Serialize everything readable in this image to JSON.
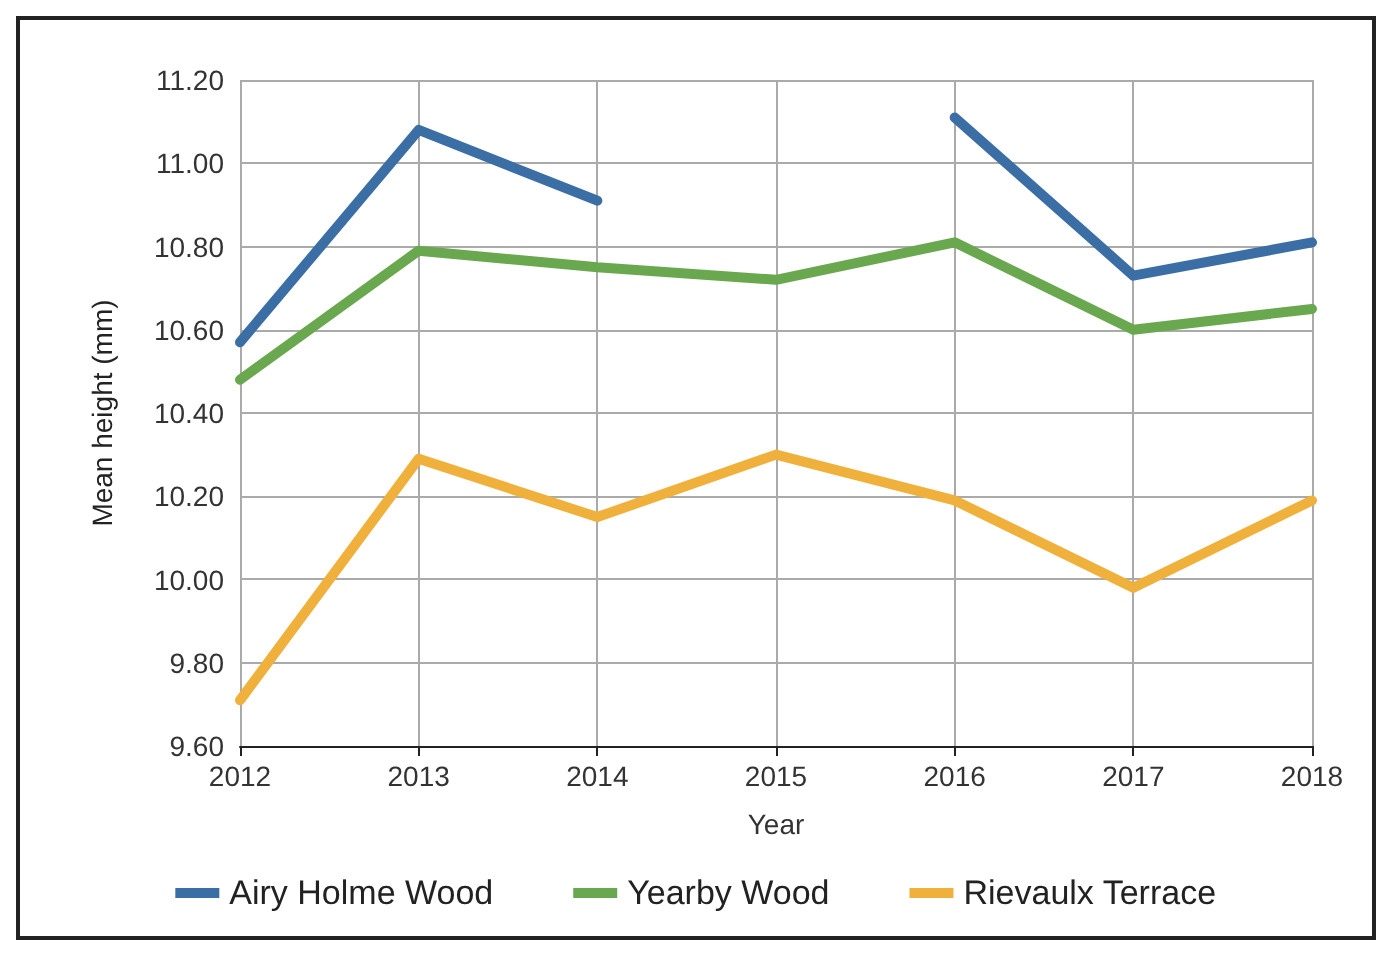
{
  "chart_data": {
    "type": "line",
    "xlabel": "Year",
    "ylabel": "Mean height (mm)",
    "categories": [
      "2012",
      "2013",
      "2014",
      "2015",
      "2016",
      "2017",
      "2018"
    ],
    "series": [
      {
        "name": "Airy Holme Wood",
        "color": "#3b6ea5",
        "values": [
          10.57,
          11.08,
          10.91,
          null,
          11.11,
          10.73,
          10.81
        ]
      },
      {
        "name": "Yearby Wood",
        "color": "#6aa84f",
        "values": [
          10.48,
          10.79,
          10.75,
          10.72,
          10.81,
          10.6,
          10.65
        ]
      },
      {
        "name": "Rievaulx Terrace",
        "color": "#f0b03c",
        "values": [
          9.71,
          10.29,
          10.15,
          10.3,
          10.19,
          9.98,
          10.19
        ]
      }
    ],
    "ylim": [
      9.6,
      11.2
    ],
    "yticks": [
      {
        "value": 9.6,
        "label": "9.60"
      },
      {
        "value": 9.8,
        "label": "9.80"
      },
      {
        "value": 10.0,
        "label": "10.00"
      },
      {
        "value": 10.2,
        "label": "10.20"
      },
      {
        "value": 10.4,
        "label": "10.40"
      },
      {
        "value": 10.6,
        "label": "10.60"
      },
      {
        "value": 10.8,
        "label": "10.80"
      },
      {
        "value": 11.0,
        "label": "11.00"
      },
      {
        "value": 11.2,
        "label": "11.20"
      }
    ],
    "grid": true,
    "legend": "bottom",
    "marker": "none",
    "line_style": "solid"
  }
}
